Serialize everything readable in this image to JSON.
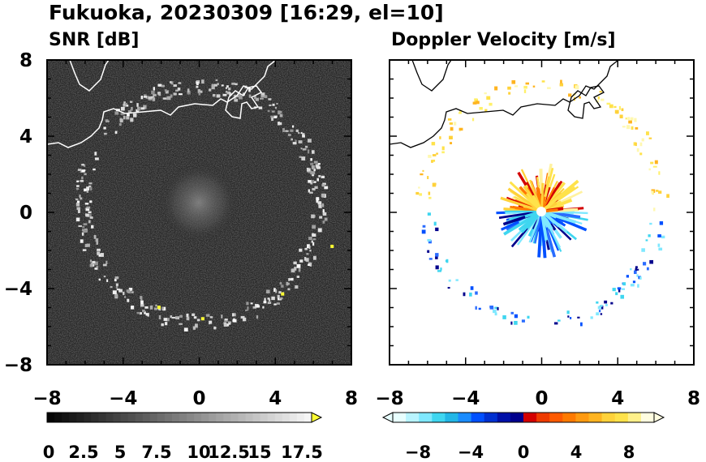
{
  "figure": {
    "title": "Fukuoka, 20230309 [16:29, el=10]"
  },
  "chart_data": [
    {
      "type": "heatmap",
      "title": "SNR [dB]",
      "xlim": [
        -8,
        8
      ],
      "ylim": [
        -8,
        8
      ],
      "xticks": [
        "−8",
        "−4",
        "0",
        "4",
        "8"
      ],
      "yticks": [
        "8",
        "4",
        "0",
        "−4",
        "−8"
      ],
      "background_color": "#262626",
      "colorbar": {
        "range": [
          0,
          18
        ],
        "extend": "max",
        "labels": [
          "0",
          "2.5",
          "5",
          "7.5",
          "10",
          "12.5",
          "15",
          "17.5"
        ],
        "colors": [
          "#000000",
          "#ffffff",
          "#ffff33"
        ]
      },
      "features": [
        {
          "name": "echo ring",
          "cx": 0.0,
          "cy": 0.5,
          "r": 6.2,
          "value": 10
        },
        {
          "name": "near-radar clutter",
          "cx": 0.0,
          "cy": 0.5,
          "r": 1.6,
          "value": 4
        }
      ]
    },
    {
      "type": "heatmap",
      "title": "Doppler Velocity [m/s]",
      "xlim": [
        -8,
        8
      ],
      "ylim": [
        -8,
        8
      ],
      "xticks": [
        "−8",
        "−4",
        "0",
        "4",
        "8"
      ],
      "yticks": [
        "8",
        "4",
        "0",
        "−4",
        "−8"
      ],
      "background_color": "#ffffff",
      "colorbar": {
        "range": [
          -10,
          10
        ],
        "extend": "both",
        "labels": [
          "−8",
          "−4",
          "0",
          "4",
          "8"
        ],
        "colors": [
          "#e8ffff",
          "#3fd6f0",
          "#0050ff",
          "#00008c",
          "#d40000",
          "#ff7a00",
          "#ffe24a",
          "#fffde0"
        ]
      },
      "features": [
        {
          "name": "northern sector",
          "sign": "positive",
          "value": 5
        },
        {
          "name": "southern sector",
          "sign": "negative",
          "value": -5
        }
      ]
    }
  ]
}
